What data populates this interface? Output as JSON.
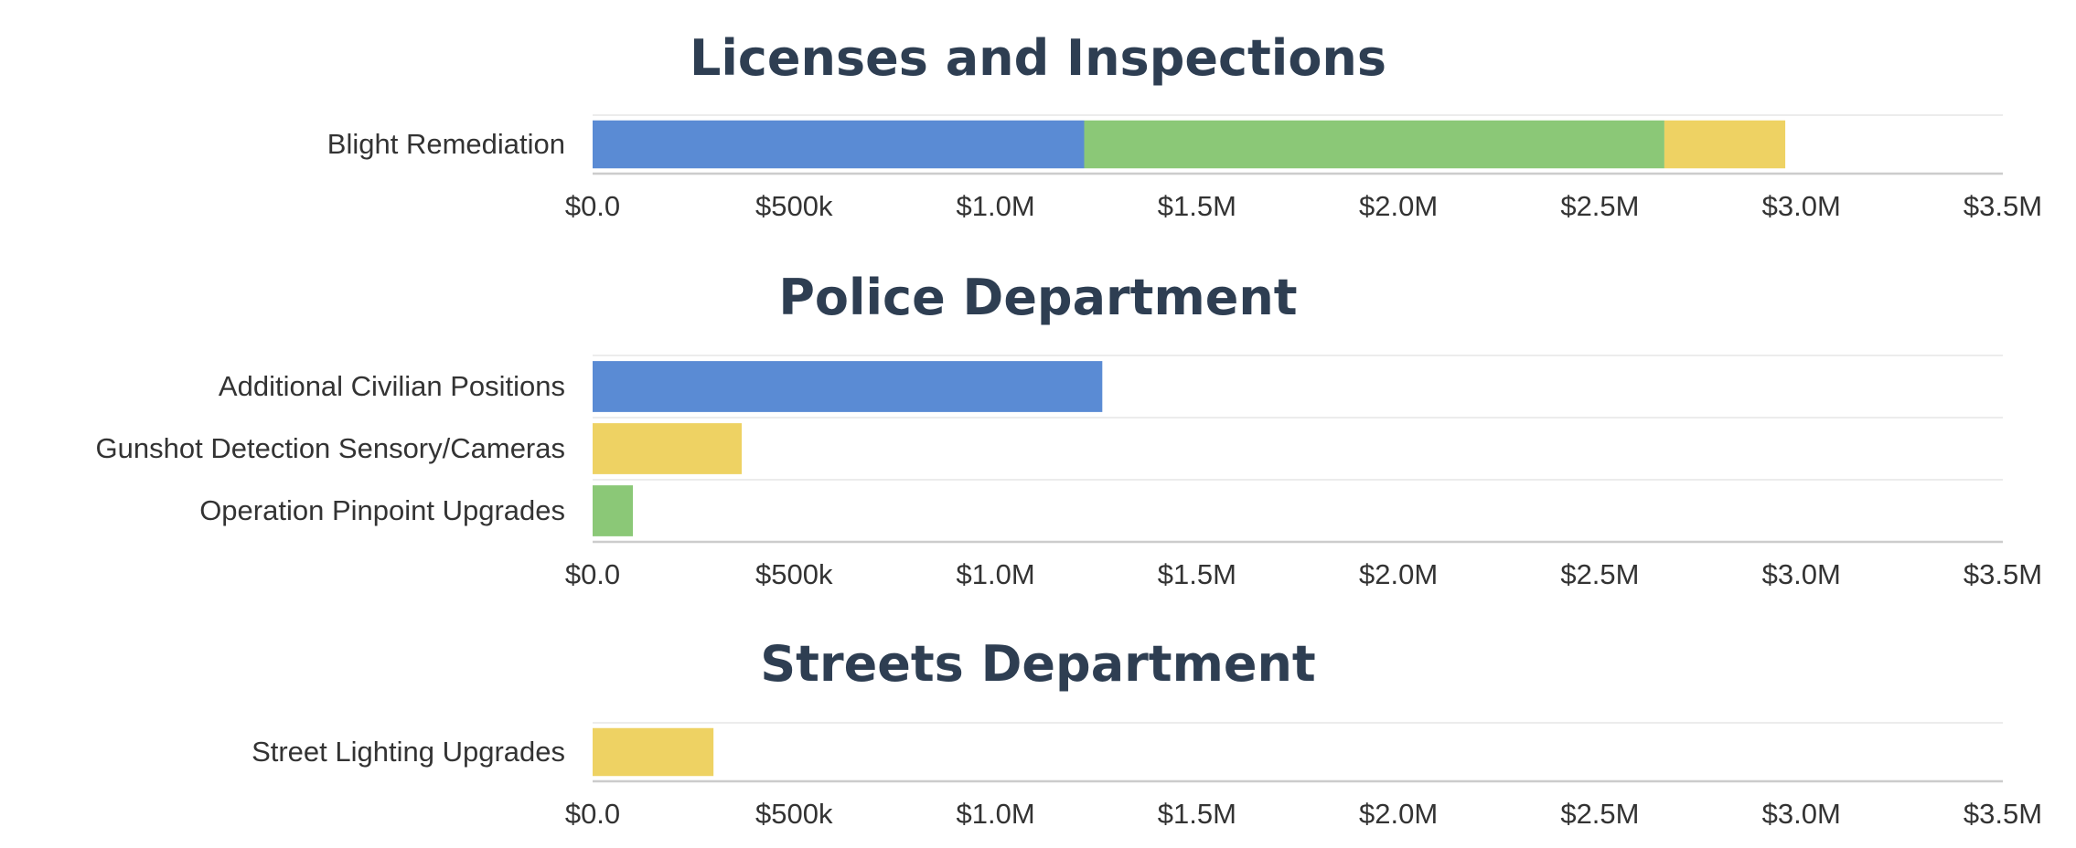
{
  "colors": {
    "blue": "#5a8bd4",
    "green": "#8bc877",
    "yellow": "#eed263",
    "title": "#2e3e52",
    "grid": "#e6e6e6",
    "axis": "#cccccc"
  },
  "chart_data": [
    {
      "type": "bar",
      "orientation": "horizontal",
      "stacked": true,
      "title": "Licenses and Inspections",
      "categories": [
        "Blight Remediation"
      ],
      "segments": [
        [
          {
            "value": 1220000,
            "color": "blue"
          },
          {
            "value": 1440000,
            "color": "green"
          },
          {
            "value": 300000,
            "color": "yellow"
          }
        ]
      ],
      "xlim": [
        0,
        3500000
      ],
      "tick_values": [
        0,
        500000,
        1000000,
        1500000,
        2000000,
        2500000,
        3000000,
        3500000
      ],
      "tick_labels": [
        "$0.0",
        "$500k",
        "$1.0M",
        "$1.5M",
        "$2.0M",
        "$2.5M",
        "$3.0M",
        "$3.5M"
      ]
    },
    {
      "type": "bar",
      "orientation": "horizontal",
      "stacked": true,
      "title": "Police Department",
      "categories": [
        "Additional Civilian Positions",
        "Gunshot Detection Sensory/Cameras",
        "Operation Pinpoint Upgrades"
      ],
      "segments": [
        [
          {
            "value": 1265000,
            "color": "blue"
          }
        ],
        [
          {
            "value": 370000,
            "color": "yellow"
          }
        ],
        [
          {
            "value": 100000,
            "color": "green"
          }
        ]
      ],
      "xlim": [
        0,
        3500000
      ],
      "tick_values": [
        0,
        500000,
        1000000,
        1500000,
        2000000,
        2500000,
        3000000,
        3500000
      ],
      "tick_labels": [
        "$0.0",
        "$500k",
        "$1.0M",
        "$1.5M",
        "$2.0M",
        "$2.5M",
        "$3.0M",
        "$3.5M"
      ]
    },
    {
      "type": "bar",
      "orientation": "horizontal",
      "stacked": true,
      "title": "Streets Department",
      "categories": [
        "Street Lighting Upgrades"
      ],
      "segments": [
        [
          {
            "value": 300000,
            "color": "yellow"
          }
        ]
      ],
      "xlim": [
        0,
        3500000
      ],
      "tick_values": [
        0,
        500000,
        1000000,
        1500000,
        2000000,
        2500000,
        3000000,
        3500000
      ],
      "tick_labels": [
        "$0.0",
        "$500k",
        "$1.0M",
        "$1.5M",
        "$2.0M",
        "$2.5M",
        "$3.0M",
        "$3.5M"
      ]
    }
  ]
}
